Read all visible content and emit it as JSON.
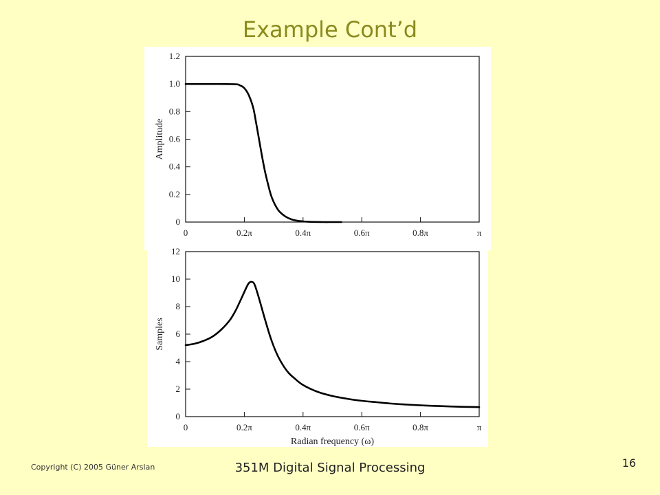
{
  "slide": {
    "title": "Example Cont’d",
    "copyright": "Copyright (C) 2005 Güner Arslan",
    "course": "351M Digital Signal Processing",
    "page_number": "16",
    "background_color": "#FFFFC4",
    "title_color": "#8A8A1E"
  },
  "chart_data": [
    {
      "type": "line",
      "title": "",
      "xlabel": "",
      "ylabel": "Amplitude",
      "xlim": [
        0,
        1
      ],
      "ylim": [
        0,
        1.2
      ],
      "x_tick_values": [
        0,
        0.2,
        0.4,
        0.6,
        0.8,
        1.0
      ],
      "x_tick_labels": [
        "0",
        "0.2π",
        "0.4π",
        "0.6π",
        "0.8π",
        "π"
      ],
      "y_tick_values": [
        0,
        0.2,
        0.4,
        0.6,
        0.8,
        1.0,
        1.2
      ],
      "y_tick_labels": [
        "0",
        "0.2",
        "0.4",
        "0.6",
        "0.8",
        "1.0",
        "1.2"
      ],
      "grid": false,
      "x_unit": "π rad",
      "series": [
        {
          "x": [
            0,
            0.1,
            0.17,
            0.185,
            0.2,
            0.215,
            0.23,
            0.24,
            0.25,
            0.26,
            0.27,
            0.28,
            0.29,
            0.3,
            0.31,
            0.32,
            0.34,
            0.36,
            0.38,
            0.4,
            0.42,
            0.44,
            0.47,
            0.5,
            0.53
          ],
          "values": [
            1.0,
            1.0,
            0.998,
            0.99,
            0.97,
            0.92,
            0.83,
            0.72,
            0.6,
            0.48,
            0.37,
            0.28,
            0.2,
            0.145,
            0.105,
            0.075,
            0.04,
            0.02,
            0.01,
            0.005,
            0.002,
            0.001,
            0.0,
            0.0,
            0.0
          ]
        }
      ]
    },
    {
      "type": "line",
      "title": "",
      "xlabel": "Radian frequency (ω)",
      "ylabel": "Samples",
      "xlim": [
        0,
        1
      ],
      "ylim": [
        0,
        12
      ],
      "x_tick_values": [
        0,
        0.2,
        0.4,
        0.6,
        0.8,
        1.0
      ],
      "x_tick_labels": [
        "0",
        "0.2π",
        "0.4π",
        "0.6π",
        "0.8π",
        "π"
      ],
      "y_tick_values": [
        0,
        2,
        4,
        6,
        8,
        10,
        12
      ],
      "y_tick_labels": [
        "0",
        "2",
        "4",
        "6",
        "8",
        "10",
        "12"
      ],
      "grid": false,
      "x_unit": "π rad",
      "series": [
        {
          "x": [
            0,
            0.03,
            0.06,
            0.09,
            0.12,
            0.15,
            0.17,
            0.19,
            0.205,
            0.215,
            0.225,
            0.235,
            0.25,
            0.27,
            0.29,
            0.31,
            0.33,
            0.35,
            0.37,
            0.4,
            0.45,
            0.5,
            0.55,
            0.6,
            0.65,
            0.7,
            0.75,
            0.8,
            0.85,
            0.9,
            0.95,
            1.0
          ],
          "values": [
            5.2,
            5.3,
            5.5,
            5.8,
            6.3,
            7.0,
            7.7,
            8.6,
            9.3,
            9.7,
            9.8,
            9.6,
            8.6,
            7.1,
            5.7,
            4.6,
            3.8,
            3.2,
            2.8,
            2.3,
            1.8,
            1.5,
            1.3,
            1.15,
            1.05,
            0.95,
            0.88,
            0.82,
            0.78,
            0.74,
            0.71,
            0.69
          ]
        }
      ]
    }
  ]
}
